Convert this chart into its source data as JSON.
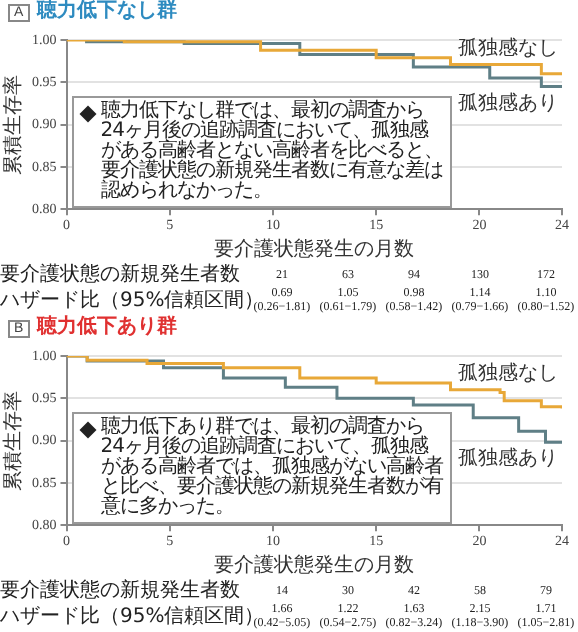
{
  "chart_data": [
    {
      "type": "step",
      "subtitle": "A",
      "title": "聴力低下なし群",
      "xlabel": "要介護状態発生の月数",
      "ylabel": "累積生存率",
      "xlim": [
        0,
        24
      ],
      "xticks": [
        0,
        5,
        10,
        15,
        20,
        24
      ],
      "ylim": [
        0.8,
        1.0
      ],
      "yticks": [
        {
          "value": 0.8,
          "label": "0.80"
        },
        {
          "value": 0.85,
          "label": "0.85"
        },
        {
          "value": 0.9,
          "label": "0.90"
        },
        {
          "value": 0.95,
          "label": "0.95"
        },
        {
          "value": 1.0,
          "label": "1.00"
        }
      ],
      "grid": "y",
      "series": [
        {
          "name": "孤独感なし",
          "color": "#e8a838",
          "x": [
            0,
            2.8,
            9.4,
            15,
            18.6,
            23,
            24
          ],
          "values": [
            1.0,
            0.998,
            0.988,
            0.979,
            0.971,
            0.96,
            0.96
          ]
        },
        {
          "name": "孤独感あり",
          "color": "#5f7f86",
          "x": [
            0.9,
            5.7,
            11.3,
            16.8,
            20.5,
            23,
            24
          ],
          "values": [
            0.998,
            0.996,
            0.983,
            0.968,
            0.955,
            0.945,
            0.944
          ]
        }
      ],
      "annotations": [
        "聴力低下なし群では、最初の調査から24ヶ月後の追跡調査において、孤独感がある高齢者とない高齢者を比べると、要介護状態の新規発生者数に有意な差は認められなかった。",
        "要介護状態の新規発生者数",
        "ハザード比（95%信頼区間）",
        "21",
        "63",
        "94",
        "130",
        "172",
        "0.69 (0.26−1.81)",
        "1.05 (0.61−1.79)",
        "0.98 (0.58−1.42)",
        "1.14 (0.79−1.66)",
        "1.10 (0.80−1.52)"
      ]
    },
    {
      "type": "step",
      "subtitle": "B",
      "title": "聴力低下あり群",
      "xlabel": "要介護状態発生の月数",
      "ylabel": "累積生存率",
      "xlim": [
        0,
        24
      ],
      "xticks": [
        0,
        5,
        10,
        15,
        20,
        24
      ],
      "ylim": [
        0.8,
        1.0
      ],
      "yticks": [
        {
          "value": 0.8,
          "label": "0.80"
        },
        {
          "value": 0.85,
          "label": "0.85"
        },
        {
          "value": 0.9,
          "label": "0.90"
        },
        {
          "value": 0.95,
          "label": "0.95"
        },
        {
          "value": 1.0,
          "label": "1.00"
        }
      ],
      "grid": "y",
      "series": [
        {
          "name": "孤独感なし",
          "color": "#e8a838",
          "x": [
            0,
            1.0,
            3.9,
            7.6,
            11.3,
            15,
            18.6,
            21,
            21.2,
            23,
            24
          ],
          "values": [
            1.0,
            0.995,
            0.991,
            0.986,
            0.974,
            0.968,
            0.96,
            0.957,
            0.947,
            0.94,
            0.938
          ]
        },
        {
          "name": "孤独感あり",
          "color": "#5f7f86",
          "x": [
            0,
            1,
            4.7,
            7.6,
            10.6,
            13.1,
            16.8,
            19.7,
            21.9,
            23.2,
            24
          ],
          "values": [
            1.0,
            0.994,
            0.986,
            0.974,
            0.963,
            0.95,
            0.942,
            0.927,
            0.911,
            0.898,
            0.897
          ]
        }
      ],
      "annotations": [
        "聴力低下あり群では、最初の調査から24ヶ月後の追跡調査において、孤独感がある高齢者では、孤独感がない高齢者と比べ、要介護状態の新規発生者数が有意に多かった。",
        "要介護状態の新規発生者数",
        "ハザード比（95%信頼区間）",
        "14",
        "30",
        "42",
        "58",
        "79",
        "1.66 (0.42−5.05)",
        "1.22 (0.54−2.75)",
        "1.63 (0.82−3.24)",
        "2.15 (1.18−3.90)",
        "1.71 (1.05−2.81)"
      ]
    }
  ]
}
